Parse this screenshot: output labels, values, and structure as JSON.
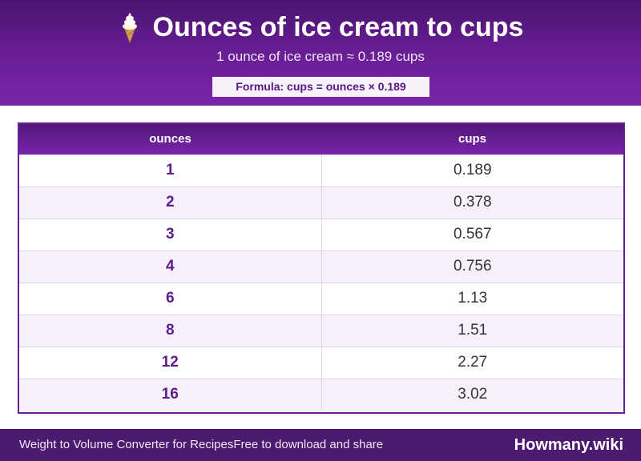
{
  "header": {
    "title": "Ounces of ice cream to cups",
    "icon": "ice-cream-icon",
    "subtitle": "1 ounce of ice cream ≈ 0.189 cups",
    "formula": "Formula: cups = ounces × 0.189"
  },
  "chart_data": {
    "type": "table",
    "columns": [
      "ounces",
      "cups"
    ],
    "rows": [
      {
        "ounces": "1",
        "cups": "0.189"
      },
      {
        "ounces": "2",
        "cups": "0.378"
      },
      {
        "ounces": "3",
        "cups": "0.567"
      },
      {
        "ounces": "4",
        "cups": "0.756"
      },
      {
        "ounces": "6",
        "cups": "1.13"
      },
      {
        "ounces": "8",
        "cups": "1.51"
      },
      {
        "ounces": "12",
        "cups": "2.27"
      },
      {
        "ounces": "16",
        "cups": "3.02"
      }
    ]
  },
  "footer": {
    "left_text": "Weight to Volume Converter for Recipes",
    "left_text_2": "Free to download and share",
    "brand": "Howmany.wiki"
  },
  "colors": {
    "header": "#6a1f97",
    "accent": "#5e1b8c",
    "footer": "#4c1a6e",
    "stripe": "#f5f0fa"
  }
}
